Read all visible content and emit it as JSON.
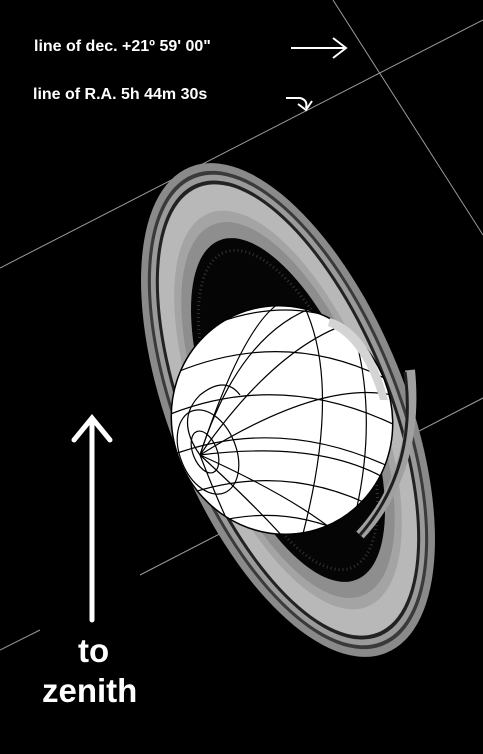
{
  "labels": {
    "dec_line": "line of dec. +21º 59' 00\"",
    "ra_line": "line of R.A. 5h 44m 30s",
    "zenith_to": "to",
    "zenith_word": "zenith"
  },
  "colors": {
    "background": "#000000",
    "planet": "#ffffff",
    "grid": "#000000",
    "ring_outer": "#8c8c8c",
    "ring_inner": "#b4b4b4",
    "sky_lines": "#aaaaaa",
    "text": "#ffffff"
  }
}
